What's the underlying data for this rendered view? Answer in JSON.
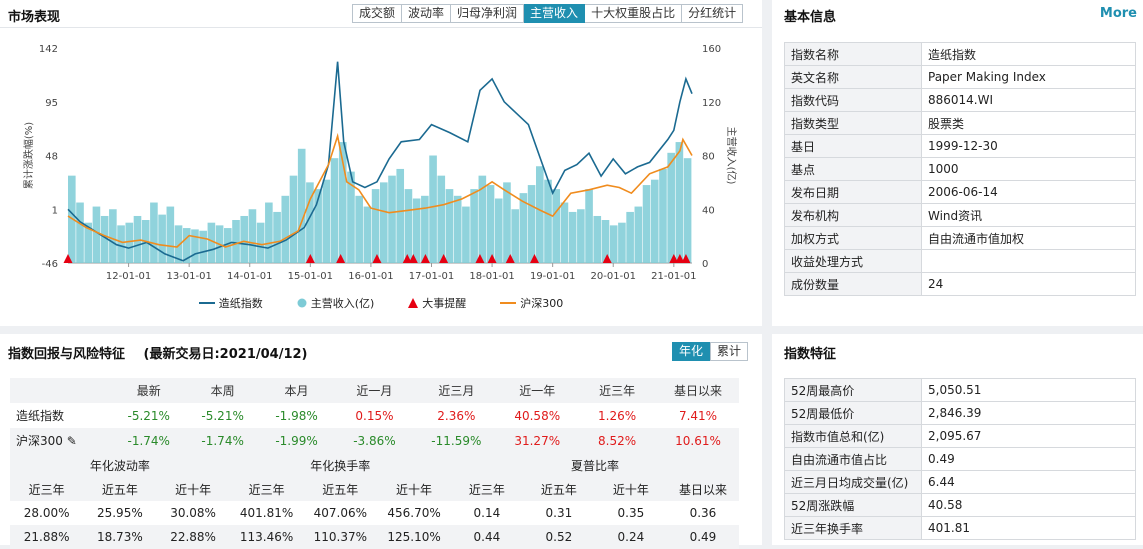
{
  "market": {
    "title": "市场表现",
    "tabs": [
      "成交额",
      "波动率",
      "归母净利润",
      "主营收入",
      "十大权重股占比",
      "分红统计"
    ],
    "active_tab": 3,
    "legend": [
      {
        "label": "造纸指数",
        "icon": "line-icon",
        "color": "#1b6a91"
      },
      {
        "label": "主营收入(亿)",
        "icon": "circle-icon",
        "color": "#7dcbd6"
      },
      {
        "label": "大事提醒",
        "icon": "triangle-icon",
        "color": "#e60012"
      },
      {
        "label": "沪深300",
        "icon": "line-icon",
        "color": "#f08c1e"
      }
    ]
  },
  "chart_data": {
    "type": "line",
    "yleft": {
      "label": "累计涨跌幅(%)",
      "ticks": [
        "142",
        "95",
        "48",
        "1",
        "-46"
      ],
      "range": [
        -46,
        142
      ]
    },
    "yright": {
      "label": "主营收入(亿)",
      "ticks": [
        "160",
        "120",
        "80",
        "40",
        "0"
      ],
      "range": [
        0,
        160
      ]
    },
    "x_ticks": [
      "12-01-01",
      "13-01-01",
      "14-01-01",
      "15-01-01",
      "16-01-01",
      "17-01-01",
      "18-01-01",
      "19-01-01",
      "20-01-01",
      "21-01-01"
    ],
    "x_range": [
      2011.0,
      2021.3
    ],
    "series": [
      {
        "name": "造纸指数",
        "color": "#1b6a91",
        "points": [
          [
            2011.0,
            1
          ],
          [
            2011.2,
            -10
          ],
          [
            2011.5,
            -20
          ],
          [
            2011.8,
            -30
          ],
          [
            2012.0,
            -33
          ],
          [
            2012.3,
            -28
          ],
          [
            2012.6,
            -38
          ],
          [
            2012.9,
            -44
          ],
          [
            2013.1,
            -38
          ],
          [
            2013.4,
            -34
          ],
          [
            2013.7,
            -28
          ],
          [
            2014.0,
            -30
          ],
          [
            2014.3,
            -33
          ],
          [
            2014.6,
            -26
          ],
          [
            2014.9,
            -15
          ],
          [
            2015.1,
            5
          ],
          [
            2015.3,
            40
          ],
          [
            2015.45,
            130
          ],
          [
            2015.55,
            60
          ],
          [
            2015.7,
            25
          ],
          [
            2015.9,
            20
          ],
          [
            2016.1,
            25
          ],
          [
            2016.3,
            45
          ],
          [
            2016.5,
            60
          ],
          [
            2016.8,
            62
          ],
          [
            2017.0,
            75
          ],
          [
            2017.3,
            68
          ],
          [
            2017.6,
            60
          ],
          [
            2017.8,
            105
          ],
          [
            2018.0,
            115
          ],
          [
            2018.2,
            95
          ],
          [
            2018.4,
            85
          ],
          [
            2018.6,
            75
          ],
          [
            2018.8,
            45
          ],
          [
            2019.0,
            15
          ],
          [
            2019.2,
            35
          ],
          [
            2019.4,
            40
          ],
          [
            2019.6,
            50
          ],
          [
            2019.8,
            30
          ],
          [
            2020.0,
            45
          ],
          [
            2020.2,
            32
          ],
          [
            2020.4,
            38
          ],
          [
            2020.6,
            42
          ],
          [
            2020.9,
            62
          ],
          [
            2021.0,
            70
          ],
          [
            2021.1,
            95
          ],
          [
            2021.2,
            115
          ],
          [
            2021.3,
            102
          ]
        ]
      },
      {
        "name": "沪深300",
        "color": "#f08c1e",
        "points": [
          [
            2011.0,
            -5
          ],
          [
            2011.3,
            -15
          ],
          [
            2011.6,
            -22
          ],
          [
            2011.9,
            -28
          ],
          [
            2012.2,
            -26
          ],
          [
            2012.5,
            -30
          ],
          [
            2012.8,
            -32
          ],
          [
            2013.0,
            -22
          ],
          [
            2013.3,
            -25
          ],
          [
            2013.6,
            -32
          ],
          [
            2013.9,
            -27
          ],
          [
            2014.2,
            -30
          ],
          [
            2014.5,
            -27
          ],
          [
            2014.8,
            -18
          ],
          [
            2015.0,
            10
          ],
          [
            2015.3,
            40
          ],
          [
            2015.45,
            65
          ],
          [
            2015.6,
            25
          ],
          [
            2015.8,
            18
          ],
          [
            2016.0,
            2
          ],
          [
            2016.3,
            -2
          ],
          [
            2016.6,
            0
          ],
          [
            2016.9,
            2
          ],
          [
            2017.2,
            5
          ],
          [
            2017.5,
            10
          ],
          [
            2017.8,
            18
          ],
          [
            2018.0,
            25
          ],
          [
            2018.2,
            18
          ],
          [
            2018.5,
            8
          ],
          [
            2018.8,
            0
          ],
          [
            2019.0,
            -5
          ],
          [
            2019.3,
            15
          ],
          [
            2019.6,
            18
          ],
          [
            2019.9,
            22
          ],
          [
            2020.1,
            20
          ],
          [
            2020.3,
            15
          ],
          [
            2020.6,
            32
          ],
          [
            2020.9,
            38
          ],
          [
            2021.1,
            52
          ],
          [
            2021.15,
            62
          ],
          [
            2021.3,
            48
          ]
        ]
      }
    ],
    "bars": {
      "name": "主营收入(亿)",
      "color": "#7dcbd6",
      "values": [
        65,
        45,
        30,
        42,
        35,
        40,
        28,
        30,
        35,
        32,
        45,
        36,
        42,
        28,
        26,
        25,
        24,
        30,
        28,
        26,
        32,
        35,
        40,
        30,
        45,
        38,
        50,
        65,
        85,
        60,
        55,
        62,
        78,
        90,
        68,
        50,
        42,
        55,
        60,
        65,
        70,
        55,
        48,
        50,
        80,
        65,
        55,
        50,
        42,
        55,
        65,
        58,
        48,
        60,
        40,
        52,
        58,
        72,
        62,
        55,
        45,
        38,
        40,
        55,
        35,
        32,
        28,
        30,
        38,
        42,
        58,
        62,
        70,
        82,
        90,
        78
      ]
    },
    "event_markers_x": [
      2011.0,
      2015.0,
      2015.5,
      2016.1,
      2016.6,
      2016.7,
      2016.9,
      2017.2,
      2017.8,
      2018.0,
      2018.3,
      2018.7,
      2019.9,
      2021.0,
      2021.1,
      2021.2
    ]
  },
  "basic": {
    "title": "基本信息",
    "more": "More",
    "rows": [
      [
        "指数名称",
        "造纸指数"
      ],
      [
        "英文名称",
        "Paper Making Index"
      ],
      [
        "指数代码",
        "886014.WI"
      ],
      [
        "指数类型",
        "股票类"
      ],
      [
        "基日",
        "1999-12-30"
      ],
      [
        "基点",
        "1000"
      ],
      [
        "发布日期",
        "2006-06-14"
      ],
      [
        "发布机构",
        "Wind资讯"
      ],
      [
        "加权方式",
        "自由流通市值加权"
      ],
      [
        "收益处理方式",
        ""
      ],
      [
        "成份数量",
        "24"
      ]
    ]
  },
  "returns": {
    "title": "指数回报与风险特征",
    "subtitle": "(最新交易日:2021/04/12)",
    "toggle": [
      "年化",
      "累计"
    ],
    "headers": [
      "",
      "最新",
      "本周",
      "本月",
      "近一月",
      "近三月",
      "近一年",
      "近三年",
      "基日以来"
    ],
    "rows": [
      {
        "name": "造纸指数",
        "values": [
          "-5.21%",
          "-5.21%",
          "-1.98%",
          "0.15%",
          "2.36%",
          "40.58%",
          "1.26%",
          "7.41%"
        ]
      },
      {
        "name": "沪深300",
        "values": [
          "-1.74%",
          "-1.74%",
          "-1.99%",
          "-3.86%",
          "-11.59%",
          "31.27%",
          "8.52%",
          "10.61%"
        ]
      }
    ]
  },
  "risk": {
    "groups": [
      "年化波动率",
      "年化换手率",
      "夏普比率"
    ],
    "sub": [
      "近三年",
      "近五年",
      "近十年",
      "近三年",
      "近五年",
      "近十年",
      "近三年",
      "近五年",
      "近十年",
      "基日以来"
    ],
    "rows": [
      [
        "28.00%",
        "25.95%",
        "30.08%",
        "401.81%",
        "407.06%",
        "456.70%",
        "0.14",
        "0.31",
        "0.35",
        "0.36"
      ],
      [
        "21.88%",
        "18.73%",
        "22.88%",
        "113.46%",
        "110.37%",
        "125.10%",
        "0.44",
        "0.52",
        "0.24",
        "0.49"
      ]
    ]
  },
  "features": {
    "title": "指数特征",
    "rows": [
      [
        "52周最高价",
        "5,050.51"
      ],
      [
        "52周最低价",
        "2,846.39"
      ],
      [
        "指数市值总和(亿)",
        "2,095.67"
      ],
      [
        "自由流通市值占比",
        "0.49"
      ],
      [
        "近三月日均成交量(亿)",
        "6.44"
      ],
      [
        "52周涨跌幅",
        "40.58"
      ],
      [
        "近三年换手率",
        "401.81"
      ]
    ]
  }
}
